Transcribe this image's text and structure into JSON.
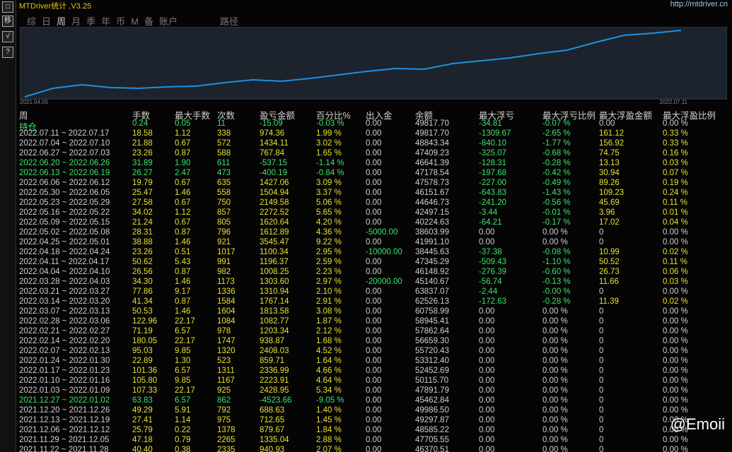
{
  "header": {
    "title": "MTDriver统计 ,V3.25",
    "url": "http://mtdriver.cn"
  },
  "toolbar": [
    "移",
    "√",
    "?"
  ],
  "tabs": [
    "综",
    "日",
    "周",
    "月",
    "季",
    "年",
    "币",
    "M",
    "备",
    "账户",
    "路径"
  ],
  "active_tab": 2,
  "chart_data": {
    "type": "line",
    "x_start_label": "2021.04.05",
    "x_end_label": "2022.07.11",
    "color": "#1e90e0",
    "values": [
      3,
      15,
      20,
      16,
      15,
      17,
      18,
      23,
      27,
      25,
      29,
      34,
      39,
      43,
      42,
      50,
      54,
      58,
      64,
      69,
      80,
      90,
      93,
      97
    ],
    "ylim": [
      0,
      100
    ]
  },
  "table": {
    "columns": [
      "周",
      "手数",
      "最大手数",
      "次数",
      "盈亏金额",
      "百分比%",
      "出入金",
      "余额",
      "最大浮亏",
      "最大浮亏比例",
      "最大浮盈金额",
      "最大浮盈比例"
    ],
    "rows": [
      [
        "持仓",
        "0.24",
        "0.05",
        "11",
        "-15.09",
        "-0.03 %",
        "0.00",
        "49817.70",
        "-34.81",
        "-0.07 %",
        "0.00",
        "0.00 %"
      ],
      [
        "2022.07.11 ~ 2022.07.17",
        "18.58",
        "1.12",
        "338",
        "974.36",
        "1.99 %",
        "0.00",
        "49817.70",
        "-1309.67",
        "-2.65 %",
        "161.12",
        "0.33 %"
      ],
      [
        "2022.07.04 ~ 2022.07.10",
        "21.88",
        "0.67",
        "572",
        "1434.11",
        "3.02 %",
        "0.00",
        "48843.34",
        "-840.10",
        "-1.77 %",
        "156.92",
        "0.33 %"
      ],
      [
        "2022.06.27 ~ 2022.07.03",
        "23.26",
        "0.87",
        "588",
        "767.84",
        "1.65 %",
        "0.00",
        "47409.23",
        "-325.07",
        "-0.68 %",
        "74.75",
        "0.16 %"
      ],
      [
        "2022.06.20 ~ 2022.06.26",
        "31.89",
        "1.90",
        "611",
        "-537.15",
        "-1.14 %",
        "0.00",
        "46641.39",
        "-128.31",
        "-0.28 %",
        "13.13",
        "0.03 %"
      ],
      [
        "2022.06.13 ~ 2022.06.19",
        "26.27",
        "2.47",
        "473",
        "-400.19",
        "-0.84 %",
        "0.00",
        "47178.54",
        "-197.68",
        "-0.42 %",
        "30.94",
        "0.07 %"
      ],
      [
        "2022.06.06 ~ 2022.06.12",
        "19.79",
        "0.67",
        "635",
        "1427.06",
        "3.09 %",
        "0.00",
        "47578.73",
        "-227.00",
        "-0.49 %",
        "89.26",
        "0.19 %"
      ],
      [
        "2022.05.30 ~ 2022.06.05",
        "25.47",
        "1.46",
        "558",
        "1504.94",
        "3.37 %",
        "0.00",
        "46151.67",
        "-643.83",
        "-1.43 %",
        "109.23",
        "0.24 %"
      ],
      [
        "2022.05.23 ~ 2022.05.29",
        "27.58",
        "0.67",
        "750",
        "2149.58",
        "5.06 %",
        "0.00",
        "44646.73",
        "-241.20",
        "-0.56 %",
        "45.69",
        "0.11 %"
      ],
      [
        "2022.05.16 ~ 2022.05.22",
        "34.02",
        "1.12",
        "857",
        "2272.52",
        "5.65 %",
        "0.00",
        "42497.15",
        "-3.44",
        "-0.01 %",
        "3.96",
        "0.01 %"
      ],
      [
        "2022.05.09 ~ 2022.05.15",
        "21.24",
        "0.67",
        "805",
        "1620.64",
        "4.20 %",
        "0.00",
        "40224.63",
        "-64.21",
        "-0.17 %",
        "17.02",
        "0.04 %"
      ],
      [
        "2022.05.02 ~ 2022.05.08",
        "28.31",
        "0.87",
        "796",
        "1612.89",
        "4.36 %",
        "-5000.00",
        "38603.99",
        "0.00",
        "0.00 %",
        "0",
        "0.00 %"
      ],
      [
        "2022.04.25 ~ 2022.05.01",
        "38.88",
        "1.46",
        "921",
        "3545.47",
        "9.22 %",
        "0.00",
        "41991.10",
        "0.00",
        "0.00 %",
        "0",
        "0.00 %"
      ],
      [
        "2022.04.18 ~ 2022.04.24",
        "23.26",
        "0.51",
        "1017",
        "1100.34",
        "2.95 %",
        "-10000.00",
        "38445.63",
        "-37.38",
        "-0.08 %",
        "10.99",
        "0.02 %"
      ],
      [
        "2022.04.11 ~ 2022.04.17",
        "50.62",
        "5.43",
        "991",
        "1196.37",
        "2.59 %",
        "0.00",
        "47345.29",
        "-509.43",
        "-1.10 %",
        "50.52",
        "0.11 %"
      ],
      [
        "2022.04.04 ~ 2022.04.10",
        "26.56",
        "0.87",
        "982",
        "1008.25",
        "2.23 %",
        "0.00",
        "46148.92",
        "-276.39",
        "-0.60 %",
        "26.73",
        "0.06 %"
      ],
      [
        "2022.03.28 ~ 2022.04.03",
        "34.30",
        "1.46",
        "1173",
        "1303.60",
        "2.97 %",
        "-20000.00",
        "45140.67",
        "-56.74",
        "-0.13 %",
        "11.66",
        "0.03 %"
      ],
      [
        "2022.03.21 ~ 2022.03.27",
        "77.86",
        "9.17",
        "1336",
        "1310.94",
        "2.10 %",
        "0.00",
        "63837.07",
        "-2.44",
        "-0.00 %",
        "0",
        "0.00 %"
      ],
      [
        "2022.03.14 ~ 2022.03.20",
        "41.34",
        "0.87",
        "1584",
        "1767.14",
        "2.91 %",
        "0.00",
        "62526.13",
        "-172.63",
        "-0.28 %",
        "11.39",
        "0.02 %"
      ],
      [
        "2022.03.07 ~ 2022.03.13",
        "50.53",
        "1.46",
        "1604",
        "1813.58",
        "3.08 %",
        "0.00",
        "60758.99",
        "0.00",
        "0.00 %",
        "0",
        "0.00 %"
      ],
      [
        "2022.02.28 ~ 2022.03.06",
        "122.96",
        "22.17",
        "1084",
        "1082.77",
        "1.87 %",
        "0.00",
        "58945.41",
        "0.00",
        "0.00 %",
        "0",
        "0.00 %"
      ],
      [
        "2022.02.21 ~ 2022.02.27",
        "71.19",
        "6.57",
        "978",
        "1203.34",
        "2.12 %",
        "0.00",
        "57862.64",
        "0.00",
        "0.00 %",
        "0",
        "0.00 %"
      ],
      [
        "2022.02.14 ~ 2022.02.20",
        "180.05",
        "22.17",
        "1747",
        "938.87",
        "1.68 %",
        "0.00",
        "56659.30",
        "0.00",
        "0.00 %",
        "0",
        "0.00 %"
      ],
      [
        "2022.02.07 ~ 2022.02.13",
        "95.03",
        "9.85",
        "1320",
        "2408.03",
        "4.52 %",
        "0.00",
        "55720.43",
        "0.00",
        "0.00 %",
        "0",
        "0.00 %"
      ],
      [
        "2022.01.24 ~ 2022.01.30",
        "22.89",
        "1.30",
        "523",
        "859.71",
        "1.64 %",
        "0.00",
        "53312.40",
        "0.00",
        "0.00 %",
        "0",
        "0.00 %"
      ],
      [
        "2022.01.17 ~ 2022.01.23",
        "101.36",
        "6.57",
        "1311",
        "2336.99",
        "4.66 %",
        "0.00",
        "52452.69",
        "0.00",
        "0.00 %",
        "0",
        "0.00 %"
      ],
      [
        "2022.01.10 ~ 2022.01.16",
        "105.80",
        "9.85",
        "1167",
        "2223.91",
        "4.64 %",
        "0.00",
        "50115.70",
        "0.00",
        "0.00 %",
        "0",
        "0.00 %"
      ],
      [
        "2022.01.03 ~ 2022.01.09",
        "107.33",
        "22.17",
        "925",
        "2428.95",
        "5.34 %",
        "0.00",
        "47891.79",
        "0.00",
        "0.00 %",
        "0",
        "0.00 %"
      ],
      [
        "2021.12.27 ~ 2022.01.02",
        "63.83",
        "6.57",
        "862",
        "-4523.66",
        "-9.05 %",
        "0.00",
        "45462.84",
        "0.00",
        "0.00 %",
        "0",
        "0.00 %"
      ],
      [
        "2021.12.20 ~ 2021.12.26",
        "49.29",
        "5.91",
        "792",
        "688.63",
        "1.40 %",
        "0.00",
        "49986.50",
        "0.00",
        "0.00 %",
        "0",
        "0.00 %"
      ],
      [
        "2021.12.13 ~ 2021.12.19",
        "27.41",
        "1.14",
        "975",
        "712.65",
        "1.45 %",
        "0.00",
        "49297.87",
        "0.00",
        "0.00 %",
        "0",
        "0.00 %"
      ],
      [
        "2021.12.06 ~ 2021.12.12",
        "25.79",
        "0.22",
        "1378",
        "879.67",
        "1.84 %",
        "0.00",
        "48585.22",
        "0.00",
        "0.00 %",
        "0",
        "0.00 %"
      ],
      [
        "2021.11.29 ~ 2021.12.05",
        "47.18",
        "0.79",
        "2265",
        "1335.04",
        "2.88 %",
        "0.00",
        "47705.55",
        "0.00",
        "0.00 %",
        "0",
        "0.00 %"
      ],
      [
        "2021.11.22 ~ 2021.11.28",
        "40.40",
        "0.38",
        "2335",
        "940.93",
        "2.07 %",
        "0.00",
        "46370.51",
        "0.00",
        "0.00 %",
        "0",
        "0.00 %"
      ]
    ]
  },
  "watermark": "@Emoii"
}
